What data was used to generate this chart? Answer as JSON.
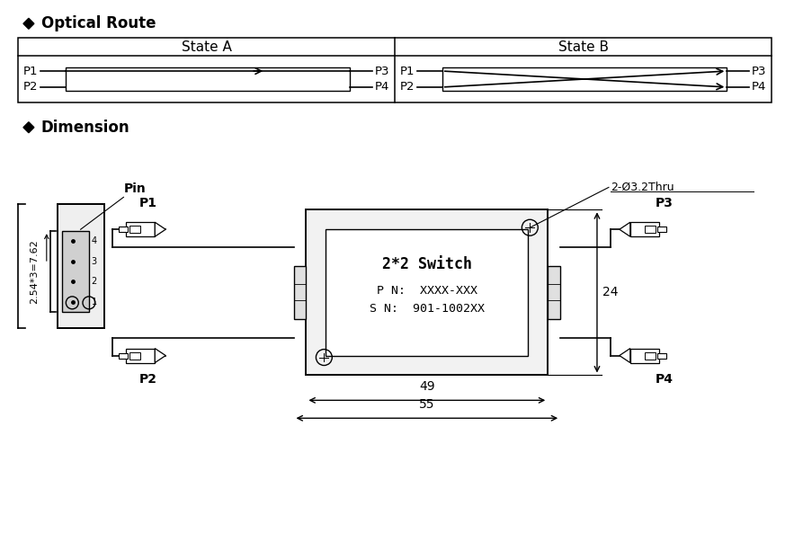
{
  "title_optical": "Optical Route",
  "title_dimension": "Dimension",
  "state_a_label": "State A",
  "state_b_label": "State B",
  "switch_label": "2*2 Switch",
  "pn_label": "P N:  XXXX-XXX",
  "sn_label": "S N:  901-1002XX",
  "dim_49": "49",
  "dim_55": "55",
  "dim_24": "24",
  "dim_hole": "2-Ø3.2Thru",
  "dim_pin_spacing": "2.54*3=7.62",
  "pin_label": "Pin",
  "bg_color": "#ffffff",
  "line_color": "#000000",
  "label_color": "#000000",
  "text_color": "#000000",
  "orange": "#cc6600"
}
